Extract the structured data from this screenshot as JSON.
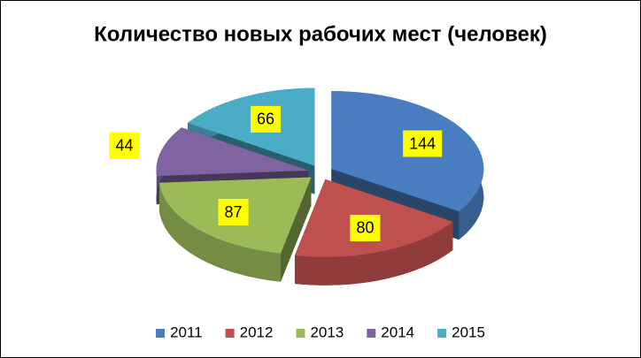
{
  "chart_data": {
    "type": "pie",
    "title": "Количество новых рабочих мест (человек)",
    "categories": [
      "2011",
      "2012",
      "2013",
      "2014",
      "2015"
    ],
    "values": [
      144,
      80,
      87,
      44,
      66
    ],
    "colors": [
      "#4a7dbf",
      "#c0504d",
      "#9bbb59",
      "#8064a2",
      "#4bacc6"
    ],
    "legend": "bottom"
  }
}
